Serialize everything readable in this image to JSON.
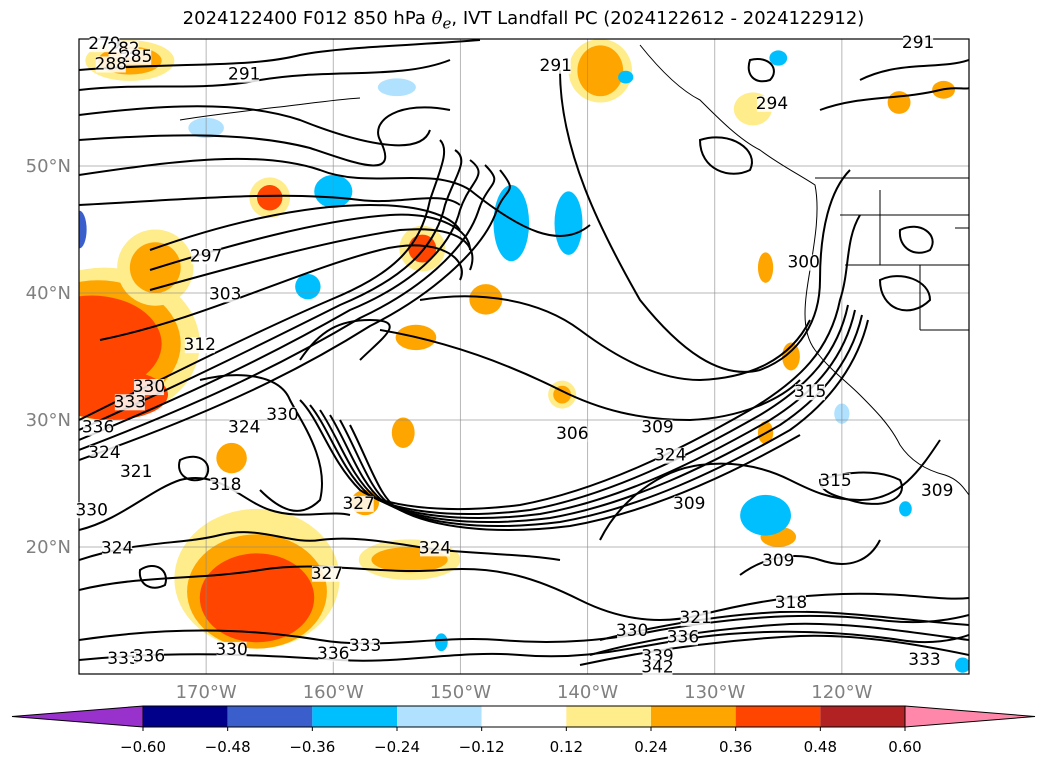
{
  "title": {
    "prefix": "2024122400 F012 850 hPa ",
    "symbol": "θ",
    "symbol_sub": "e",
    "suffix": ", IVT Landfall PC (2024122612 - 2024122912)"
  },
  "chart_data": {
    "type": "heatmap",
    "title": "2024122400 F012 850 hPa θe, IVT Landfall PC (2024122612 - 2024122912)",
    "map": {
      "projection": "lat-lon",
      "lon_range": [
        -180,
        -110
      ],
      "lat_range": [
        10,
        60
      ],
      "grid": true
    },
    "x_ticks": [
      "170°W",
      "160°W",
      "150°W",
      "140°W",
      "130°W",
      "120°W"
    ],
    "x_tick_values": [
      -170,
      -160,
      -150,
      -140,
      -130,
      -120
    ],
    "y_ticks": [
      "50°N",
      "40°N",
      "30°N",
      "20°N"
    ],
    "y_tick_values": [
      50,
      40,
      30,
      20
    ],
    "colorbar": {
      "orientation": "horizontal",
      "extend": "both",
      "tick_labels": [
        "−0.60",
        "−0.48",
        "−0.36",
        "−0.24",
        "−0.12",
        "0.12",
        "0.24",
        "0.36",
        "0.48",
        "0.60"
      ],
      "bins": [
        {
          "from": null,
          "to": -0.6,
          "color": "#9932cc"
        },
        {
          "from": -0.6,
          "to": -0.48,
          "color": "#00008b"
        },
        {
          "from": -0.48,
          "to": -0.36,
          "color": "#3a5fcd"
        },
        {
          "from": -0.36,
          "to": -0.24,
          "color": "#00bfff"
        },
        {
          "from": -0.24,
          "to": -0.12,
          "color": "#b0e2ff"
        },
        {
          "from": -0.12,
          "to": 0.12,
          "color": "#ffffff"
        },
        {
          "from": 0.12,
          "to": 0.24,
          "color": "#ffec8b"
        },
        {
          "from": 0.24,
          "to": 0.36,
          "color": "#ffa500"
        },
        {
          "from": 0.36,
          "to": 0.48,
          "color": "#ff4500"
        },
        {
          "from": 0.48,
          "to": 0.6,
          "color": "#b22222"
        },
        {
          "from": 0.6,
          "to": null,
          "color": "#ff88aa"
        }
      ]
    },
    "contour_labels": [
      {
        "text": "279",
        "lon": -178,
        "lat": 59.2
      },
      {
        "text": "282",
        "lon": -176.5,
        "lat": 58.8
      },
      {
        "text": "285",
        "lon": -175.5,
        "lat": 58.2
      },
      {
        "text": "288",
        "lon": -177.5,
        "lat": 57.6
      },
      {
        "text": "291",
        "lon": -167,
        "lat": 56.8
      },
      {
        "text": "291",
        "lon": -142.5,
        "lat": 57.5
      },
      {
        "text": "291",
        "lon": -114,
        "lat": 59.3
      },
      {
        "text": "294",
        "lon": -125.5,
        "lat": 54.5
      },
      {
        "text": "297",
        "lon": -170,
        "lat": 42.5
      },
      {
        "text": "300",
        "lon": -123,
        "lat": 42
      },
      {
        "text": "303",
        "lon": -168.5,
        "lat": 39.5
      },
      {
        "text": "312",
        "lon": -170.5,
        "lat": 35.5
      },
      {
        "text": "330",
        "lon": -174.5,
        "lat": 32.2
      },
      {
        "text": "333",
        "lon": -176,
        "lat": 31
      },
      {
        "text": "336",
        "lon": -178.5,
        "lat": 29
      },
      {
        "text": "324",
        "lon": -178,
        "lat": 27
      },
      {
        "text": "321",
        "lon": -175.5,
        "lat": 25.5
      },
      {
        "text": "324",
        "lon": -167,
        "lat": 29
      },
      {
        "text": "330",
        "lon": -164,
        "lat": 30
      },
      {
        "text": "318",
        "lon": -168.5,
        "lat": 24.5
      },
      {
        "text": "330",
        "lon": -179,
        "lat": 22.5
      },
      {
        "text": "324",
        "lon": -177,
        "lat": 19.5
      },
      {
        "text": "327",
        "lon": -158,
        "lat": 23
      },
      {
        "text": "324",
        "lon": -152,
        "lat": 19.5
      },
      {
        "text": "327",
        "lon": -160.5,
        "lat": 17.5
      },
      {
        "text": "330",
        "lon": -168,
        "lat": 11.5
      },
      {
        "text": "333",
        "lon": -176.5,
        "lat": 10.8
      },
      {
        "text": "336",
        "lon": -174.5,
        "lat": 11
      },
      {
        "text": "336",
        "lon": -160,
        "lat": 11.2
      },
      {
        "text": "333",
        "lon": -157.5,
        "lat": 11.8
      },
      {
        "text": "306",
        "lon": -141.2,
        "lat": 28.5
      },
      {
        "text": "309",
        "lon": -134.5,
        "lat": 29
      },
      {
        "text": "324",
        "lon": -133.5,
        "lat": 26.8
      },
      {
        "text": "309",
        "lon": -132,
        "lat": 23
      },
      {
        "text": "315",
        "lon": -122.5,
        "lat": 31.8
      },
      {
        "text": "315",
        "lon": -120.5,
        "lat": 24.8
      },
      {
        "text": "309",
        "lon": -125,
        "lat": 18.5
      },
      {
        "text": "309",
        "lon": -112.5,
        "lat": 24
      },
      {
        "text": "318",
        "lon": -124,
        "lat": 15.2
      },
      {
        "text": "321",
        "lon": -131.5,
        "lat": 14
      },
      {
        "text": "330",
        "lon": -136.5,
        "lat": 13
      },
      {
        "text": "336",
        "lon": -132.5,
        "lat": 12.5
      },
      {
        "text": "339",
        "lon": -134.5,
        "lat": 11
      },
      {
        "text": "342",
        "lon": -134.5,
        "lat": 10.1
      },
      {
        "text": "333",
        "lon": -113.5,
        "lat": 10.7
      }
    ],
    "shaded_regions": [
      {
        "value": 0.18,
        "lon": -176,
        "lat": 58.3,
        "rlon": 3.5,
        "rlat": 1.6
      },
      {
        "value": 0.3,
        "lon": -176,
        "lat": 58.3,
        "rlon": 2.5,
        "rlat": 1.1
      },
      {
        "value": 0.18,
        "lon": -139,
        "lat": 57.5,
        "rlon": 2.5,
        "rlat": 2.5
      },
      {
        "value": 0.3,
        "lon": -139,
        "lat": 57.5,
        "rlon": 1.8,
        "rlat": 2
      },
      {
        "value": 0.18,
        "lon": -178,
        "lat": 36,
        "rlon": 7.5,
        "rlat": 6
      },
      {
        "value": 0.3,
        "lon": -178.5,
        "lat": 36,
        "rlon": 6.5,
        "rlat": 5
      },
      {
        "value": 0.42,
        "lon": -179,
        "lat": 36,
        "rlon": 5.5,
        "rlat": 3.8
      },
      {
        "value": 0.42,
        "lon": -177.5,
        "lat": 32,
        "rlon": 4.5,
        "rlat": 2
      },
      {
        "value": 0.18,
        "lon": -174,
        "lat": 42,
        "rlon": 3,
        "rlat": 3
      },
      {
        "value": 0.3,
        "lon": -174,
        "lat": 42,
        "rlon": 2,
        "rlat": 2
      },
      {
        "value": 0.18,
        "lon": -165,
        "lat": 47.5,
        "rlon": 1.6,
        "rlat": 1.6
      },
      {
        "value": 0.42,
        "lon": -165,
        "lat": 47.5,
        "rlon": 1,
        "rlat": 1
      },
      {
        "value": 0.18,
        "lon": -153,
        "lat": 43.5,
        "rlon": 1.8,
        "rlat": 1.8
      },
      {
        "value": 0.42,
        "lon": -153,
        "lat": 43.5,
        "rlon": 1.1,
        "rlat": 1.1
      },
      {
        "value": 0.3,
        "lon": -148,
        "lat": 39.5,
        "rlon": 1.3,
        "rlat": 1.2
      },
      {
        "value": 0.3,
        "lon": -153.5,
        "lat": 36.5,
        "rlon": 1.6,
        "rlat": 1
      },
      {
        "value": 0.3,
        "lon": -154.5,
        "lat": 29,
        "rlon": 0.9,
        "rlat": 1.2
      },
      {
        "value": 0.3,
        "lon": -168,
        "lat": 27,
        "rlon": 1.2,
        "rlat": 1.2
      },
      {
        "value": 0.3,
        "lon": -157.5,
        "lat": 23.5,
        "rlon": 1.1,
        "rlat": 1
      },
      {
        "value": 0.18,
        "lon": -166,
        "lat": 17.5,
        "rlon": 6.5,
        "rlat": 5.5
      },
      {
        "value": 0.3,
        "lon": -166,
        "lat": 16.5,
        "rlon": 5.5,
        "rlat": 4.5
      },
      {
        "value": 0.42,
        "lon": -166,
        "lat": 16,
        "rlon": 4.5,
        "rlat": 3.5
      },
      {
        "value": 0.18,
        "lon": -154,
        "lat": 19,
        "rlon": 4,
        "rlat": 1.6
      },
      {
        "value": 0.3,
        "lon": -154,
        "lat": 19,
        "rlon": 3,
        "rlat": 1
      },
      {
        "value": 0.18,
        "lon": -142,
        "lat": 32,
        "rlon": 1.1,
        "rlat": 1.1
      },
      {
        "value": 0.3,
        "lon": -142,
        "lat": 32,
        "rlon": 0.7,
        "rlat": 0.7
      },
      {
        "value": 0.3,
        "lon": -126,
        "lat": 42,
        "rlon": 0.6,
        "rlat": 1.2
      },
      {
        "value": 0.3,
        "lon": -124,
        "lat": 35,
        "rlon": 0.7,
        "rlat": 1.1
      },
      {
        "value": 0.3,
        "lon": -126,
        "lat": 29,
        "rlon": 0.6,
        "rlat": 0.9
      },
      {
        "value": 0.3,
        "lon": -125,
        "lat": 20.8,
        "rlon": 1.4,
        "rlat": 0.8
      },
      {
        "value": 0.18,
        "lon": -127,
        "lat": 54.5,
        "rlon": 1.5,
        "rlat": 1.3
      },
      {
        "value": 0.3,
        "lon": -115.5,
        "lat": 55,
        "rlon": 0.9,
        "rlat": 0.9
      },
      {
        "value": 0.3,
        "lon": -112,
        "lat": 56,
        "rlon": 0.9,
        "rlat": 0.7
      },
      {
        "value": -0.18,
        "lon": -170,
        "lat": 53,
        "rlon": 1.4,
        "rlat": 0.8
      },
      {
        "value": -0.3,
        "lon": -160,
        "lat": 48,
        "rlon": 1.5,
        "rlat": 1.3
      },
      {
        "value": -0.3,
        "lon": -146,
        "lat": 45.5,
        "rlon": 1.4,
        "rlat": 3
      },
      {
        "value": -0.3,
        "lon": -141.5,
        "lat": 45.5,
        "rlon": 1.1,
        "rlat": 2.5
      },
      {
        "value": -0.3,
        "lon": -162,
        "lat": 40.5,
        "rlon": 1,
        "rlat": 1
      },
      {
        "value": -0.42,
        "lon": -180,
        "lat": 45,
        "rlon": 0.6,
        "rlat": 1.5
      },
      {
        "value": -0.18,
        "lon": -155,
        "lat": 56.2,
        "rlon": 1.5,
        "rlat": 0.7
      },
      {
        "value": -0.3,
        "lon": -126,
        "lat": 22.5,
        "rlon": 2,
        "rlat": 1.6
      },
      {
        "value": -0.3,
        "lon": -125,
        "lat": 58.5,
        "rlon": 0.7,
        "rlat": 0.6
      },
      {
        "value": -0.3,
        "lon": -137,
        "lat": 57,
        "rlon": 0.6,
        "rlat": 0.5
      },
      {
        "value": -0.18,
        "lon": -120,
        "lat": 30.5,
        "rlon": 0.6,
        "rlat": 0.8
      },
      {
        "value": -0.3,
        "lon": -110.5,
        "lat": 10.7,
        "rlon": 0.6,
        "rlat": 0.6
      },
      {
        "value": -0.3,
        "lon": -115,
        "lat": 23,
        "rlon": 0.5,
        "rlat": 0.6
      },
      {
        "value": -0.3,
        "lon": -151.5,
        "lat": 12.5,
        "rlon": 0.5,
        "rlat": 0.7
      }
    ]
  }
}
